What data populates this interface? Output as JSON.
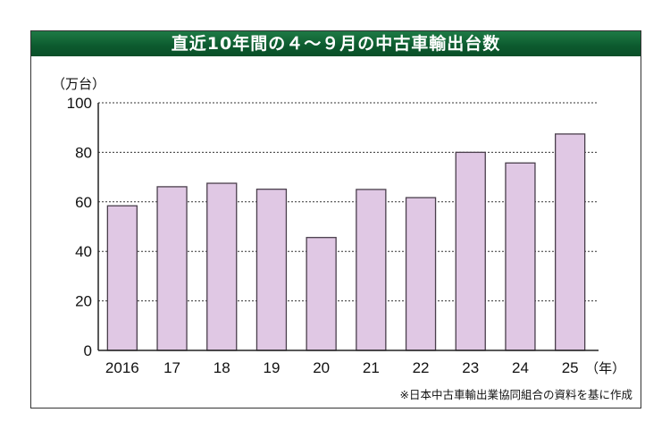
{
  "chart_data": {
    "type": "bar",
    "title": "直近10年間の４～９月の中古車輸出台数",
    "ylabel": "（万台）",
    "xlabel": "（年）",
    "categories": [
      "2016",
      "17",
      "18",
      "19",
      "20",
      "21",
      "22",
      "23",
      "24",
      "25"
    ],
    "values": [
      58.4,
      66.1,
      67.5,
      65.1,
      45.6,
      65.0,
      61.7,
      80.0,
      75.7,
      87.4
    ],
    "ylim": [
      0,
      100
    ],
    "yticks": [
      0,
      20,
      40,
      60,
      80,
      100
    ],
    "grid": true,
    "bar_color": "#e0c8e4",
    "header_color": "#0c5a2e",
    "source": "※日本中古車輸出業協同組合の資料を基に作成"
  }
}
